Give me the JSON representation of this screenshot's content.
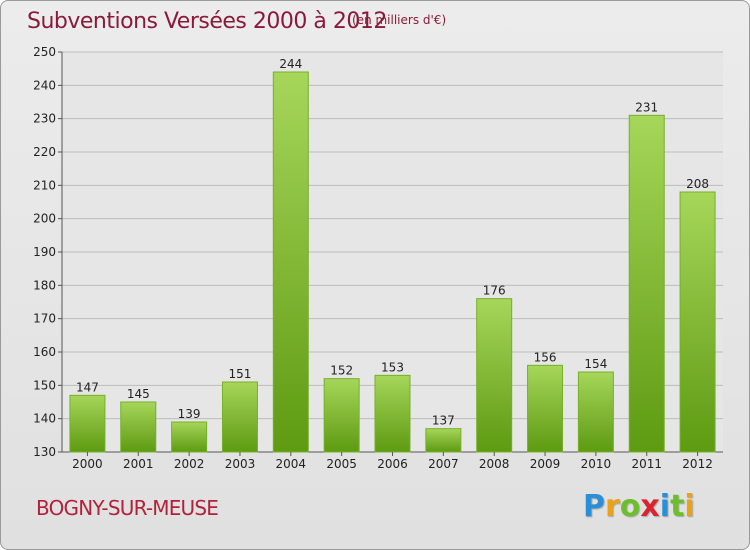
{
  "header": {
    "title": "Subventions Versées 2000 à 2012",
    "unit_note": "(en milliers d'€)"
  },
  "footer": {
    "commune": "BOGNY-SUR-MEUSE",
    "brand": "Proxiti",
    "brand_letters": [
      {
        "ch": "P",
        "color": "#2b8ed6"
      },
      {
        "ch": "r",
        "color": "#e9a21a"
      },
      {
        "ch": "o",
        "color": "#6cbf2a"
      },
      {
        "ch": "x",
        "color": "#d8262e"
      },
      {
        "ch": "i",
        "color": "#2b8ed6"
      },
      {
        "ch": "t",
        "color": "#6cbf2a"
      },
      {
        "ch": "i",
        "color": "#e9a21a"
      }
    ]
  },
  "colors": {
    "bar_top": "#a6d65a",
    "bar_bottom": "#5e9a12",
    "bar_edge": "#76b02a",
    "grid": "#bdbdbd",
    "axis_text": "#222222"
  },
  "chart_data": {
    "type": "bar",
    "categories": [
      "2000",
      "2001",
      "2002",
      "2003",
      "2004",
      "2005",
      "2006",
      "2007",
      "2008",
      "2009",
      "2010",
      "2011",
      "2012"
    ],
    "values": [
      147,
      145,
      139,
      151,
      244,
      152,
      153,
      137,
      176,
      156,
      154,
      231,
      208
    ],
    "data_labels": [
      "147",
      "145",
      "139",
      "151",
      "244",
      "152",
      "153",
      "137",
      "176",
      "156",
      "154",
      "231",
      "208"
    ],
    "title": "Subventions Versées 2000 à 2012",
    "xlabel": "",
    "ylabel": "",
    "ylim": [
      130,
      250
    ],
    "yticks": [
      130,
      140,
      150,
      160,
      170,
      180,
      190,
      200,
      210,
      220,
      230,
      240,
      250
    ],
    "grid": true,
    "legend": "none"
  }
}
